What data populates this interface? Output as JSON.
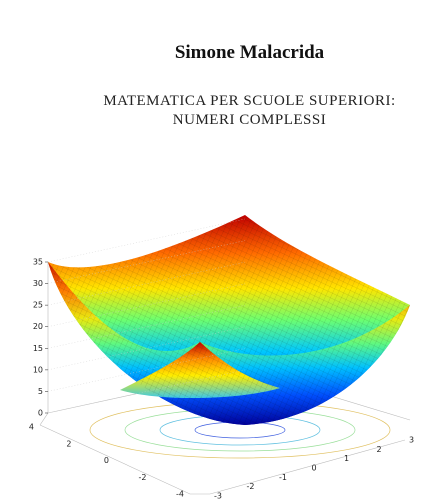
{
  "author": "Simone Malacrida",
  "title": [
    "MATEMATICA PER SCUOLE SUPERIORI:",
    "NUMERI COMPLESSI"
  ],
  "figure": {
    "zticks": [
      0,
      5,
      10,
      15,
      20,
      25,
      30,
      35
    ],
    "yticks": [
      4,
      2,
      0,
      -2,
      -4
    ],
    "xticks": [
      -3,
      -2,
      -1,
      0,
      1,
      2,
      3
    ]
  }
}
